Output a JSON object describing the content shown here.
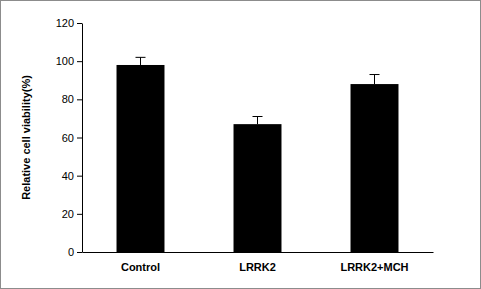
{
  "chart_data": {
    "type": "bar",
    "y_label": "Relative cell viability(%)",
    "categories": [
      "Control",
      "LRRK2",
      "LRRK2+MCH"
    ],
    "values": [
      98,
      67,
      88
    ],
    "errors": [
      4,
      4,
      5
    ],
    "color": "#000000",
    "ylim": [
      0,
      120
    ],
    "yticks": [
      0,
      20,
      40,
      60,
      80,
      100,
      120
    ],
    "grid": false
  }
}
